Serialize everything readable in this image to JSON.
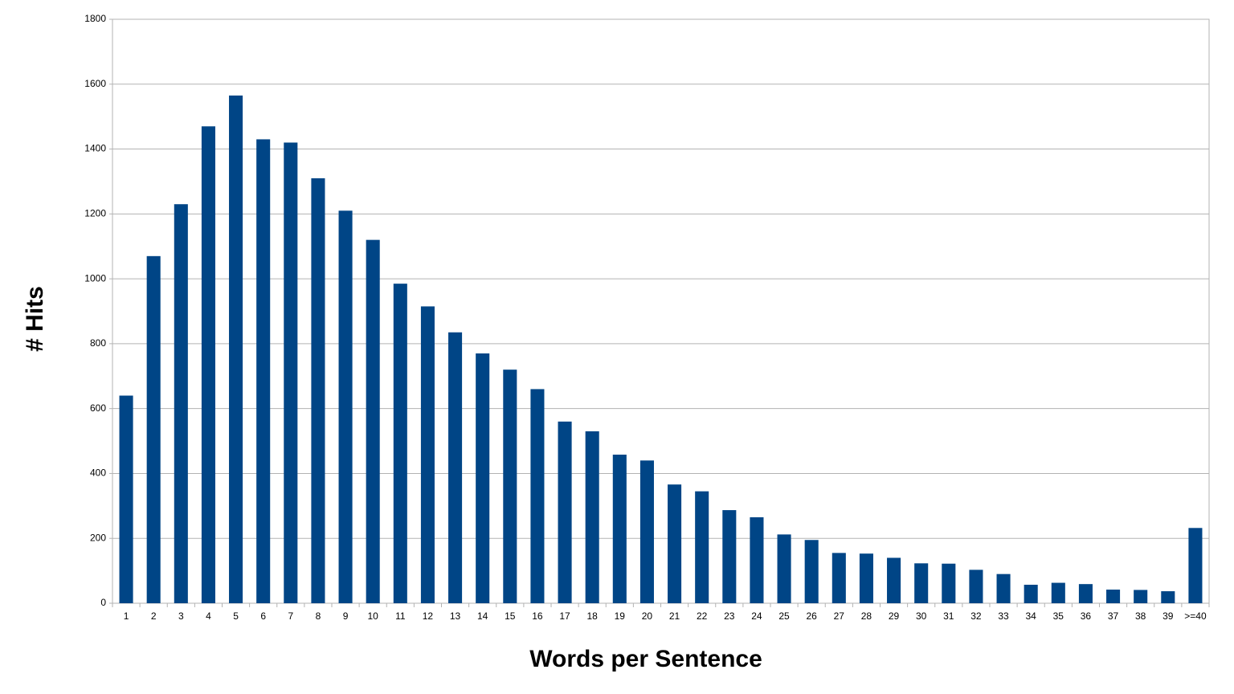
{
  "chart_data": {
    "type": "bar",
    "x_label": "Words per Sentence",
    "y_label": "# Hits",
    "categories": [
      "1",
      "2",
      "3",
      "4",
      "5",
      "6",
      "7",
      "8",
      "9",
      "10",
      "11",
      "12",
      "13",
      "14",
      "15",
      "16",
      "17",
      "18",
      "19",
      "20",
      "21",
      "22",
      "23",
      "24",
      "25",
      "26",
      "27",
      "28",
      "29",
      "30",
      "31",
      "32",
      "33",
      "34",
      "35",
      "36",
      "37",
      "38",
      "39",
      ">=40"
    ],
    "values": [
      640,
      1070,
      1230,
      1470,
      1565,
      1430,
      1420,
      1310,
      1210,
      1120,
      985,
      915,
      835,
      770,
      720,
      660,
      560,
      530,
      458,
      440,
      366,
      345,
      287,
      265,
      212,
      195,
      155,
      153,
      140,
      123,
      122,
      103,
      90,
      57,
      63,
      59,
      42,
      41,
      37,
      232
    ],
    "color": "#004586",
    "ylim": [
      0,
      1800
    ],
    "yticks": [
      0,
      200,
      400,
      600,
      800,
      1000,
      1200,
      1400,
      1600,
      1800
    ],
    "grid": true
  }
}
